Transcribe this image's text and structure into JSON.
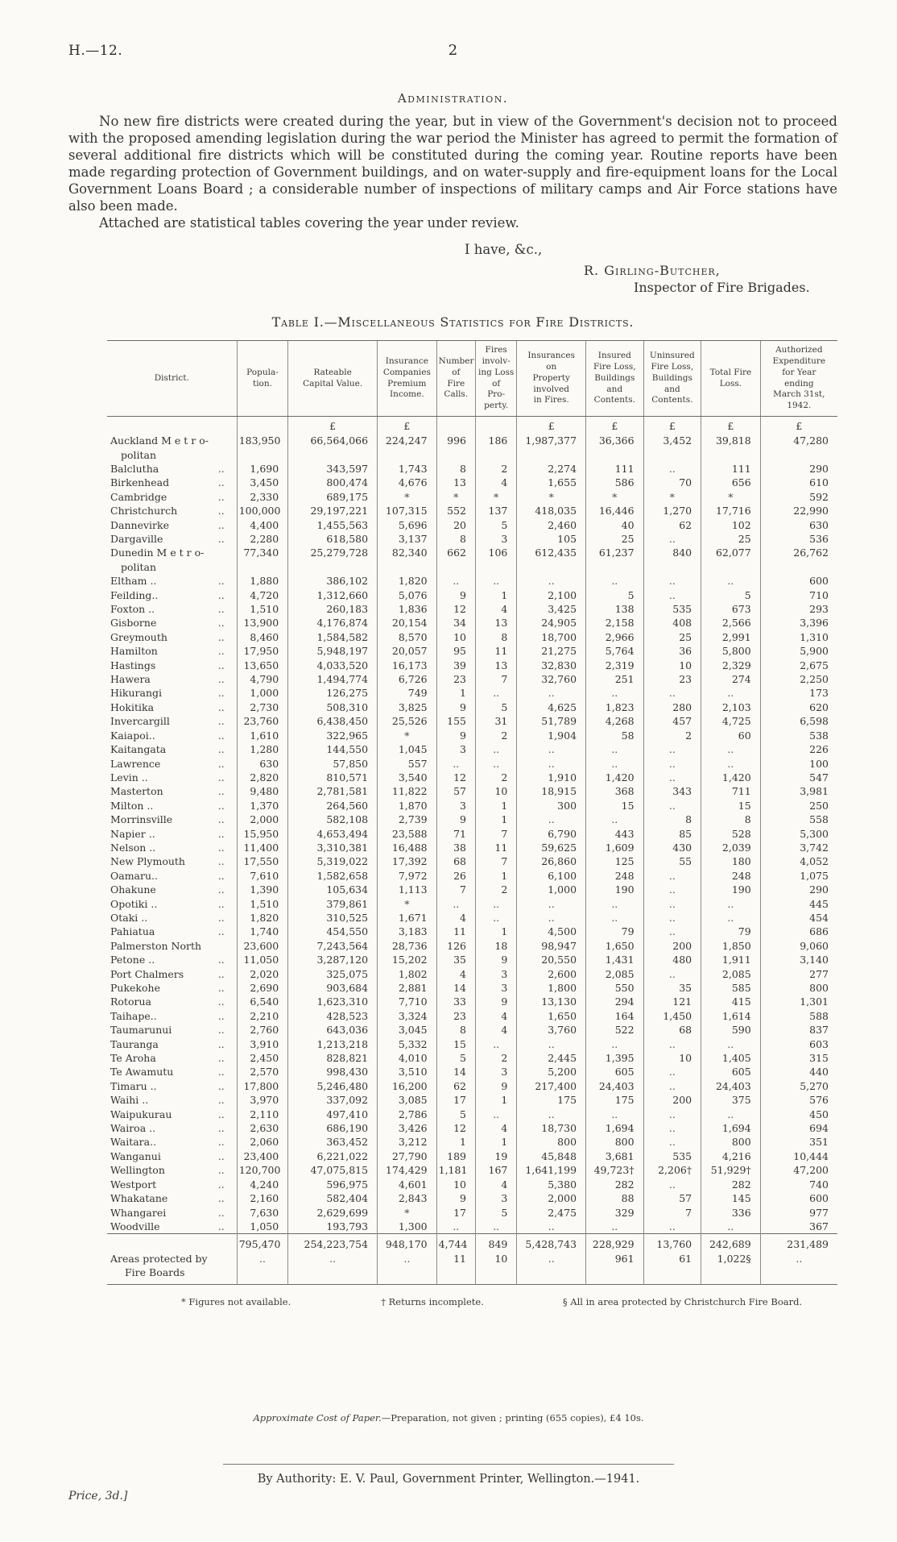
{
  "page": {
    "doc_ref": "H.—12.",
    "page_number": "2",
    "section_heading": "Administration.",
    "paragraph1": "No new fire districts were created during the year, but in view of the Government's decision not to proceed with the proposed amending legislation during the war period the Minister has agreed to permit the formation of several additional fire districts which will be constituted during the coming year. Routine reports have been made regarding protection of Government buildings, and on water-supply and fire-equipment loans for the Local Government Loans Board ;  a considerable number of inspections of military camps and Air Force stations have also been made.",
    "paragraph2": "Attached are statistical tables covering the year under review.",
    "valediction": "I have, &c.,",
    "signature": "R. Girling-Butcher,",
    "signature_title": "Inspector of Fire Brigades."
  },
  "table": {
    "title": "Table I.—Miscellaneous Statistics for Fire Districts.",
    "columns": [
      "District.",
      "Popula-\ntion.",
      "Rateable\nCapital Value.",
      "Insurance\nCompanies\nPremium\nIncome.",
      "Number\nof\nFire\nCalls.",
      "Fires\ninvolv-\ning Loss\nof\nPro-\nperty.",
      "Insurances\non\nProperty\ninvolved\nin Fires.",
      "Insured\nFire Loss,\nBuildings\nand\nContents.",
      "Uninsured\nFire Loss,\nBuildings\nand\nContents.",
      "Total Fire\nLoss.",
      "Authorized\nExpenditure\nfor Year\nending\nMarch 31st,\n1942."
    ],
    "currency_row": [
      "",
      "",
      "£",
      "£",
      "",
      "",
      "£",
      "£",
      "£",
      "£",
      "£"
    ],
    "rows": [
      {
        "d": "Auckland M e t r o-\npolitan",
        "l": false,
        "v": [
          "183,950",
          "66,564,066",
          "224,247",
          "996",
          "186",
          "1,987,377",
          "36,366",
          "3,452",
          "39,818",
          "47,280"
        ]
      },
      {
        "d": "Balclutha",
        "l": true,
        "v": [
          "1,690",
          "343,597",
          "1,743",
          "8",
          "2",
          "2,274",
          "111",
          "..",
          "111",
          "290"
        ]
      },
      {
        "d": "Birkenhead",
        "l": true,
        "v": [
          "3,450",
          "800,474",
          "4,676",
          "13",
          "4",
          "1,655",
          "586",
          "70",
          "656",
          "610"
        ]
      },
      {
        "d": "Cambridge",
        "l": true,
        "v": [
          "2,330",
          "689,175",
          "*",
          "*",
          "*",
          "*",
          "*",
          "*",
          "*",
          "592"
        ]
      },
      {
        "d": "Christchurch",
        "l": true,
        "v": [
          "100,000",
          "29,197,221",
          "107,315",
          "552",
          "137",
          "418,035",
          "16,446",
          "1,270",
          "17,716",
          "22,990"
        ]
      },
      {
        "d": "Dannevirke",
        "l": true,
        "v": [
          "4,400",
          "1,455,563",
          "5,696",
          "20",
          "5",
          "2,460",
          "40",
          "62",
          "102",
          "630"
        ]
      },
      {
        "d": "Dargaville",
        "l": true,
        "v": [
          "2,280",
          "618,580",
          "3,137",
          "8",
          "3",
          "105",
          "25",
          "..",
          "25",
          "536"
        ]
      },
      {
        "d": "Dunedin  M e t r o-\npolitan",
        "l": false,
        "v": [
          "77,340",
          "25,279,728",
          "82,340",
          "662",
          "106",
          "612,435",
          "61,237",
          "840",
          "62,077",
          "26,762"
        ]
      },
      {
        "d": "Eltham ..",
        "l": true,
        "v": [
          "1,880",
          "386,102",
          "1,820",
          "..",
          "..",
          "..",
          "..",
          "..",
          "..",
          "600"
        ]
      },
      {
        "d": "Feilding..",
        "l": true,
        "v": [
          "4,720",
          "1,312,660",
          "5,076",
          "9",
          "1",
          "2,100",
          "5",
          "..",
          "5",
          "710"
        ]
      },
      {
        "d": "Foxton ..",
        "l": true,
        "v": [
          "1,510",
          "260,183",
          "1,836",
          "12",
          "4",
          "3,425",
          "138",
          "535",
          "673",
          "293"
        ]
      },
      {
        "d": "Gisborne",
        "l": true,
        "v": [
          "13,900",
          "4,176,874",
          "20,154",
          "34",
          "13",
          "24,905",
          "2,158",
          "408",
          "2,566",
          "3,396"
        ]
      },
      {
        "d": "Greymouth",
        "l": true,
        "v": [
          "8,460",
          "1,584,582",
          "8,570",
          "10",
          "8",
          "18,700",
          "2,966",
          "25",
          "2,991",
          "1,310"
        ]
      },
      {
        "d": "Hamilton",
        "l": true,
        "v": [
          "17,950",
          "5,948,197",
          "20,057",
          "95",
          "11",
          "21,275",
          "5,764",
          "36",
          "5,800",
          "5,900"
        ]
      },
      {
        "d": "Hastings",
        "l": true,
        "v": [
          "13,650",
          "4,033,520",
          "16,173",
          "39",
          "13",
          "32,830",
          "2,319",
          "10",
          "2,329",
          "2,675"
        ]
      },
      {
        "d": "Hawera",
        "l": true,
        "v": [
          "4,790",
          "1,494,774",
          "6,726",
          "23",
          "7",
          "32,760",
          "251",
          "23",
          "274",
          "2,250"
        ]
      },
      {
        "d": "Hikurangi",
        "l": true,
        "v": [
          "1,000",
          "126,275",
          "749",
          "1",
          "..",
          "..",
          "..",
          "..",
          "..",
          "173"
        ]
      },
      {
        "d": "Hokitika",
        "l": true,
        "v": [
          "2,730",
          "508,310",
          "3,825",
          "9",
          "5",
          "4,625",
          "1,823",
          "280",
          "2,103",
          "620"
        ]
      },
      {
        "d": "Invercargill",
        "l": true,
        "v": [
          "23,760",
          "6,438,450",
          "25,526",
          "155",
          "31",
          "51,789",
          "4,268",
          "457",
          "4,725",
          "6,598"
        ]
      },
      {
        "d": "Kaiapoi..",
        "l": true,
        "v": [
          "1,610",
          "322,965",
          "*",
          "9",
          "2",
          "1,904",
          "58",
          "2",
          "60",
          "538"
        ]
      },
      {
        "d": "Kaitangata",
        "l": true,
        "v": [
          "1,280",
          "144,550",
          "1,045",
          "3",
          "..",
          "..",
          "..",
          "..",
          "..",
          "226"
        ]
      },
      {
        "d": "Lawrence",
        "l": true,
        "v": [
          "630",
          "57,850",
          "557",
          "..",
          "..",
          "..",
          "..",
          "..",
          "..",
          "100"
        ]
      },
      {
        "d": "Levin ..",
        "l": true,
        "v": [
          "2,820",
          "810,571",
          "3,540",
          "12",
          "2",
          "1,910",
          "1,420",
          "..",
          "1,420",
          "547"
        ]
      },
      {
        "d": "Masterton",
        "l": true,
        "v": [
          "9,480",
          "2,781,581",
          "11,822",
          "57",
          "10",
          "18,915",
          "368",
          "343",
          "711",
          "3,981"
        ]
      },
      {
        "d": "Milton ..",
        "l": true,
        "v": [
          "1,370",
          "264,560",
          "1,870",
          "3",
          "1",
          "300",
          "15",
          "..",
          "15",
          "250"
        ]
      },
      {
        "d": "Morrinsville",
        "l": true,
        "v": [
          "2,000",
          "582,108",
          "2,739",
          "9",
          "1",
          "..",
          "..",
          "8",
          "8",
          "558"
        ]
      },
      {
        "d": "Napier ..",
        "l": true,
        "v": [
          "15,950",
          "4,653,494",
          "23,588",
          "71",
          "7",
          "6,790",
          "443",
          "85",
          "528",
          "5,300"
        ]
      },
      {
        "d": "Nelson ..",
        "l": true,
        "v": [
          "11,400",
          "3,310,381",
          "16,488",
          "38",
          "11",
          "59,625",
          "1,609",
          "430",
          "2,039",
          "3,742"
        ]
      },
      {
        "d": "New Plymouth",
        "l": true,
        "v": [
          "17,550",
          "5,319,022",
          "17,392",
          "68",
          "7",
          "26,860",
          "125",
          "55",
          "180",
          "4,052"
        ]
      },
      {
        "d": "Oamaru..",
        "l": true,
        "v": [
          "7,610",
          "1,582,658",
          "7,972",
          "26",
          "1",
          "6,100",
          "248",
          "..",
          "248",
          "1,075"
        ]
      },
      {
        "d": "Ohakune",
        "l": true,
        "v": [
          "1,390",
          "105,634",
          "1,113",
          "7",
          "2",
          "1,000",
          "190",
          "..",
          "190",
          "290"
        ]
      },
      {
        "d": "Opotiki ..",
        "l": true,
        "v": [
          "1,510",
          "379,861",
          "*",
          "..",
          "..",
          "..",
          "..",
          "..",
          "..",
          "445"
        ]
      },
      {
        "d": "Otaki  ..",
        "l": true,
        "v": [
          "1,820",
          "310,525",
          "1,671",
          "4",
          "..",
          "..",
          "..",
          "..",
          "..",
          "454"
        ]
      },
      {
        "d": "Pahiatua",
        "l": true,
        "v": [
          "1,740",
          "454,550",
          "3,183",
          "11",
          "1",
          "4,500",
          "79",
          "..",
          "79",
          "686"
        ]
      },
      {
        "d": "Palmerston North",
        "l": false,
        "v": [
          "23,600",
          "7,243,564",
          "28,736",
          "126",
          "18",
          "98,947",
          "1,650",
          "200",
          "1,850",
          "9,060"
        ]
      },
      {
        "d": "Petone ..",
        "l": true,
        "v": [
          "11,050",
          "3,287,120",
          "15,202",
          "35",
          "9",
          "20,550",
          "1,431",
          "480",
          "1,911",
          "3,140"
        ]
      },
      {
        "d": "Port Chalmers",
        "l": true,
        "v": [
          "2,020",
          "325,075",
          "1,802",
          "4",
          "3",
          "2,600",
          "2,085",
          "..",
          "2,085",
          "277"
        ]
      },
      {
        "d": "Pukekohe",
        "l": true,
        "v": [
          "2,690",
          "903,684",
          "2,881",
          "14",
          "3",
          "1,800",
          "550",
          "35",
          "585",
          "800"
        ]
      },
      {
        "d": "Rotorua",
        "l": true,
        "v": [
          "6,540",
          "1,623,310",
          "7,710",
          "33",
          "9",
          "13,130",
          "294",
          "121",
          "415",
          "1,301"
        ]
      },
      {
        "d": "Taihape..",
        "l": true,
        "v": [
          "2,210",
          "428,523",
          "3,324",
          "23",
          "4",
          "1,650",
          "164",
          "1,450",
          "1,614",
          "588"
        ]
      },
      {
        "d": "Taumarunui",
        "l": true,
        "v": [
          "2,760",
          "643,036",
          "3,045",
          "8",
          "4",
          "3,760",
          "522",
          "68",
          "590",
          "837"
        ]
      },
      {
        "d": "Tauranga",
        "l": true,
        "v": [
          "3,910",
          "1,213,218",
          "5,332",
          "15",
          "..",
          "..",
          "..",
          "..",
          "..",
          "603"
        ]
      },
      {
        "d": "Te Aroha",
        "l": true,
        "v": [
          "2,450",
          "828,821",
          "4,010",
          "5",
          "2",
          "2,445",
          "1,395",
          "10",
          "1,405",
          "315"
        ]
      },
      {
        "d": "Te Awamutu",
        "l": true,
        "v": [
          "2,570",
          "998,430",
          "3,510",
          "14",
          "3",
          "5,200",
          "605",
          "..",
          "605",
          "440"
        ]
      },
      {
        "d": "Timaru ..",
        "l": true,
        "v": [
          "17,800",
          "5,246,480",
          "16,200",
          "62",
          "9",
          "217,400",
          "24,403",
          "..",
          "24,403",
          "5,270"
        ]
      },
      {
        "d": "Waihi  ..",
        "l": true,
        "v": [
          "3,970",
          "337,092",
          "3,085",
          "17",
          "1",
          "175",
          "175",
          "200",
          "375",
          "576"
        ]
      },
      {
        "d": "Waipukurau",
        "l": true,
        "v": [
          "2,110",
          "497,410",
          "2,786",
          "5",
          "..",
          "..",
          "..",
          "..",
          "..",
          "450"
        ]
      },
      {
        "d": "Wairoa ..",
        "l": true,
        "v": [
          "2,630",
          "686,190",
          "3,426",
          "12",
          "4",
          "18,730",
          "1,694",
          "..",
          "1,694",
          "694"
        ]
      },
      {
        "d": "Waitara..",
        "l": true,
        "v": [
          "2,060",
          "363,452",
          "3,212",
          "1",
          "1",
          "800",
          "800",
          "..",
          "800",
          "351"
        ]
      },
      {
        "d": "Wanganui",
        "l": true,
        "v": [
          "23,400",
          "6,221,022",
          "27,790",
          "189",
          "19",
          "45,848",
          "3,681",
          "535",
          "4,216",
          "10,444"
        ]
      },
      {
        "d": "Wellington",
        "l": true,
        "v": [
          "120,700",
          "47,075,815",
          "174,429",
          "1,181",
          "167",
          "1,641,199",
          "49,723†",
          "2,206†",
          "51,929†",
          "47,200"
        ]
      },
      {
        "d": "Westport",
        "l": true,
        "v": [
          "4,240",
          "596,975",
          "4,601",
          "10",
          "4",
          "5,380",
          "282",
          "..",
          "282",
          "740"
        ]
      },
      {
        "d": "Whakatane",
        "l": true,
        "v": [
          "2,160",
          "582,404",
          "2,843",
          "9",
          "3",
          "2,000",
          "88",
          "57",
          "145",
          "600"
        ]
      },
      {
        "d": "Whangarei",
        "l": true,
        "v": [
          "7,630",
          "2,629,699",
          "*",
          "17",
          "5",
          "2,475",
          "329",
          "7",
          "336",
          "977"
        ]
      },
      {
        "d": "Woodville",
        "l": true,
        "v": [
          "1,050",
          "193,793",
          "1,300",
          "..",
          "..",
          "..",
          "..",
          "..",
          "..",
          "367"
        ]
      }
    ],
    "totals": [
      [
        "",
        "795,470",
        "254,223,754",
        "948,170",
        "4,744",
        "849",
        "5,428,743",
        "228,929",
        "13,760",
        "242,689",
        "231,489"
      ],
      [
        "Areas protected by\nFire Boards",
        "..",
        "..",
        "..",
        "11",
        "10",
        "..",
        "961",
        "61",
        "1,022§",
        ".."
      ]
    ],
    "footnotes": [
      "* Figures not available.",
      "† Returns incomplete.",
      "§ All in area protected by Christchurch Fire Board."
    ]
  },
  "footer": {
    "cost_note_lead": "Approximate Cost of Paper.—",
    "cost_note_rest": "Preparation, not given ;  printing (655 copies), £4 10s.",
    "authority_line": "By Authority: E. V. Paul, Government Printer, Wellington.—1941.",
    "price_note": "Price, 3d.]"
  }
}
